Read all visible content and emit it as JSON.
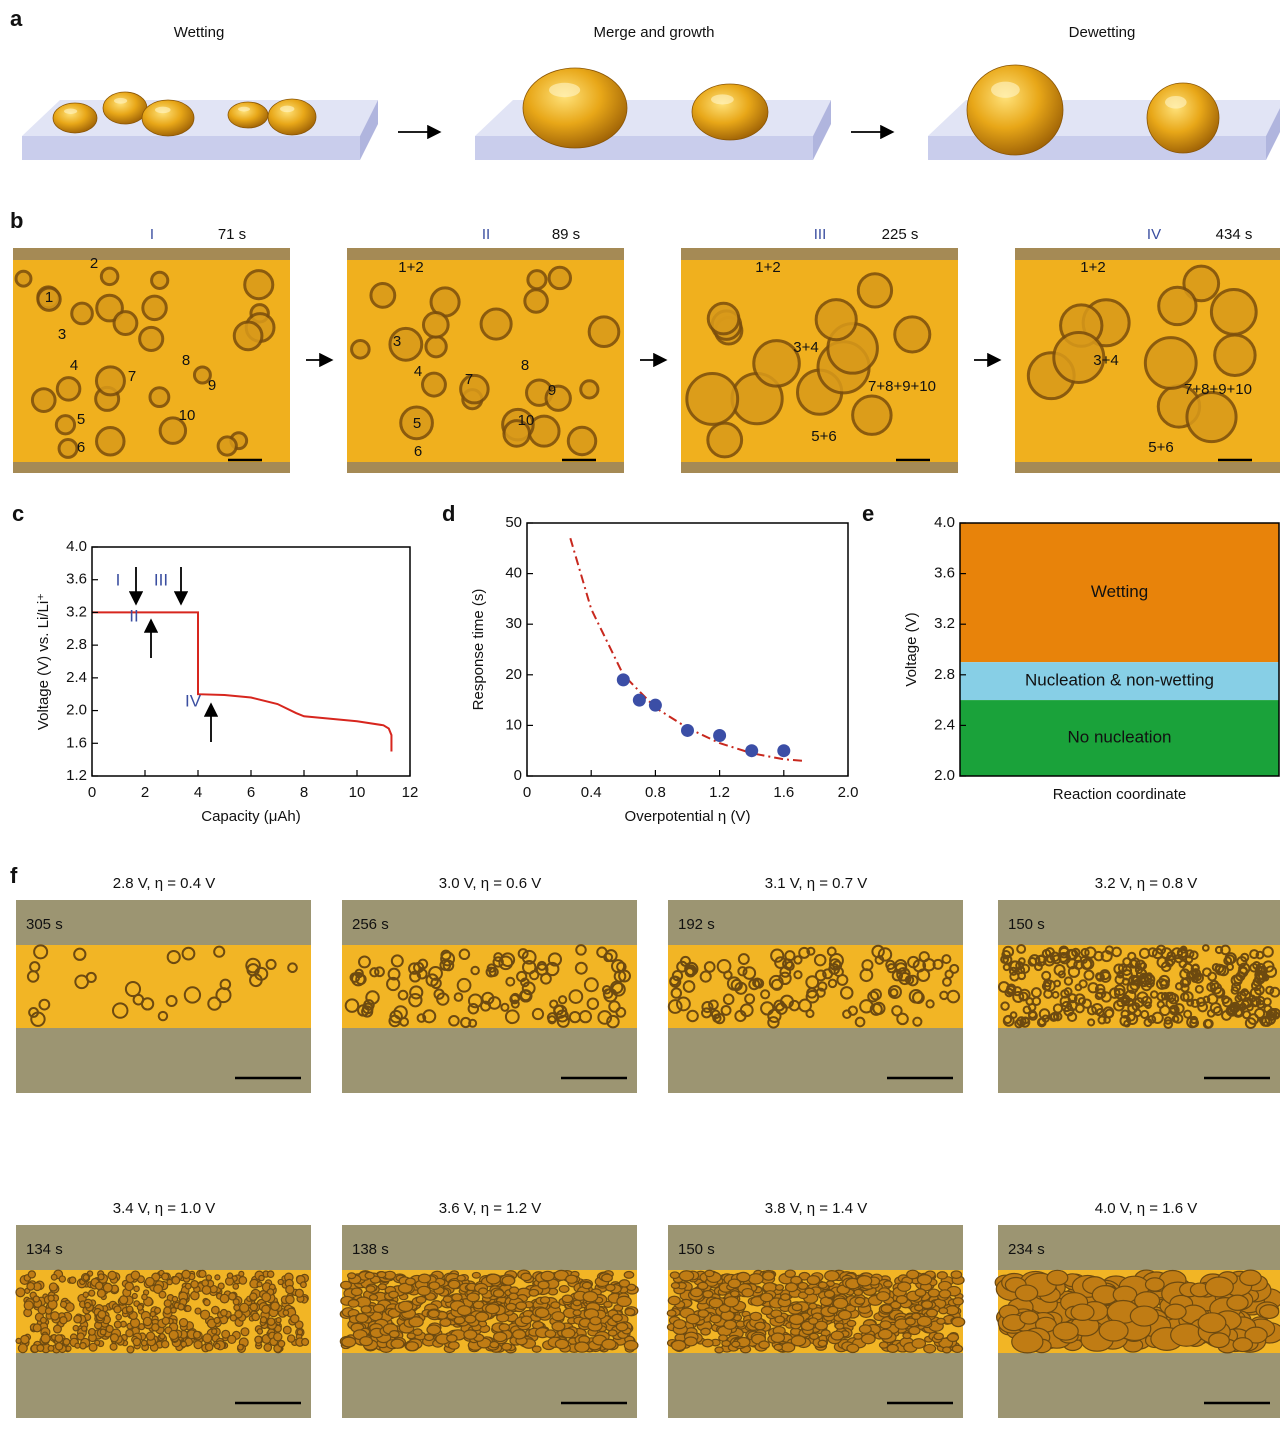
{
  "panel_a": {
    "label": "a",
    "stages": [
      "Wetting",
      "Merge and growth",
      "Dewetting"
    ]
  },
  "panel_b": {
    "label": "b",
    "frames": [
      {
        "stage": "I",
        "time": "71 s",
        "droplets": [
          "1",
          "2",
          "3",
          "4",
          "5",
          "6",
          "7",
          "8",
          "9",
          "10"
        ]
      },
      {
        "stage": "II",
        "time": "89 s",
        "droplets": [
          "1+2",
          "3",
          "4",
          "5",
          "6",
          "7",
          "8",
          "9",
          "10"
        ]
      },
      {
        "stage": "III",
        "time": "225 s",
        "droplets": [
          "1+2",
          "3+4",
          "7+8+9+10",
          "5+6"
        ]
      },
      {
        "stage": "IV",
        "time": "434 s",
        "droplets": [
          "1+2",
          "3+4",
          "7+8+9+10",
          "5+6"
        ]
      }
    ]
  },
  "chart_data": [
    {
      "type": "line",
      "panel_label": "c",
      "xlabel": "Capacity (μAh)",
      "ylabel": "Voltage (V) vs. Li/Li⁺",
      "xlim": [
        0,
        12
      ],
      "xticks": [
        0,
        2,
        4,
        6,
        8,
        10,
        12
      ],
      "ylim": [
        1.2,
        4
      ],
      "yticks": [
        1.2,
        1.6,
        {
          "value": 2,
          "label": "2.0"
        },
        2.4,
        2.8,
        3.2,
        3.6,
        {
          "value": 4,
          "label": "4.0"
        }
      ],
      "color": "#d7261e",
      "x": [
        0,
        4,
        4,
        5,
        6,
        7,
        7.7,
        8,
        9,
        10,
        11,
        11.2,
        11.3,
        11.3
      ],
      "y": [
        3.2,
        3.2,
        2.2,
        2.19,
        2.16,
        2.08,
        1.97,
        1.93,
        1.9,
        1.87,
        1.82,
        1.78,
        1.7,
        1.5
      ],
      "annotations": [
        "I",
        "II",
        "III",
        "IV"
      ]
    },
    {
      "type": "scatter",
      "panel_label": "d",
      "xlabel": "Overpotential η (V)",
      "ylabel": "Response time (s)",
      "xlim": [
        0,
        2
      ],
      "xticks": [
        0,
        0.4,
        0.8,
        1.2,
        1.6,
        {
          "value": 2,
          "label": "2.0"
        }
      ],
      "ylim": [
        0,
        50
      ],
      "yticks": [
        0,
        10,
        20,
        30,
        40,
        50
      ],
      "color": "#3b4ea6",
      "x": [
        0.6,
        0.7,
        0.8,
        1.0,
        1.2,
        1.4,
        1.6
      ],
      "y": [
        19,
        15,
        14,
        9,
        8,
        5,
        5
      ],
      "fit": {
        "color": "#c8281e",
        "x": [
          0.27,
          0.4,
          0.6,
          0.8,
          1.0,
          1.2,
          1.4,
          1.6,
          1.72
        ],
        "y": [
          47,
          33,
          20,
          13.5,
          9.5,
          6.5,
          4.5,
          3.3,
          3
        ]
      }
    },
    {
      "type": "band",
      "panel_label": "e",
      "xlabel": "Reaction coordinate",
      "ylabel": "Voltage (V)",
      "ylim": [
        2,
        4
      ],
      "yticks": [
        {
          "value": 2,
          "label": "2.0"
        },
        2.4,
        2.8,
        3.2,
        3.6,
        {
          "value": 4,
          "label": "4.0"
        }
      ],
      "bands": [
        {
          "name": "Wetting",
          "color": "#e8830a",
          "range": [
            2.9,
            4
          ]
        },
        {
          "name": "Nucleation & non-wetting",
          "color": "#87cfe6",
          "range": [
            2.6,
            2.9
          ]
        },
        {
          "name": "No nucleation",
          "color": "#1aa23a",
          "range": [
            2,
            2.6
          ]
        }
      ]
    }
  ],
  "panel_f": {
    "label": "f",
    "frames": [
      {
        "condition": "2.8 V, η = 0.4 V",
        "time": "305 s"
      },
      {
        "condition": "3.0 V, η = 0.6 V",
        "time": "256 s"
      },
      {
        "condition": "3.1 V, η = 0.7 V",
        "time": "192 s"
      },
      {
        "condition": "3.2 V, η = 0.8 V",
        "time": "150 s"
      },
      {
        "condition": "3.4 V, η = 1.0 V",
        "time": "134 s"
      },
      {
        "condition": "3.6 V, η = 1.2 V",
        "time": "138 s"
      },
      {
        "condition": "3.8 V, η = 1.4 V",
        "time": "150 s"
      },
      {
        "condition": "4.0 V, η = 1.6 V",
        "time": "234 s"
      }
    ]
  }
}
